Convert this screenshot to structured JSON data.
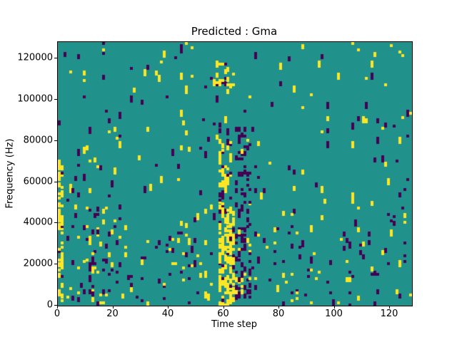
{
  "chart_data": {
    "type": "heatmap",
    "title": "Predicted : Gma",
    "xlabel": "Time step",
    "ylabel": "Frequency (Hz)",
    "x_range": [
      0,
      128
    ],
    "y_range": [
      0,
      128000
    ],
    "x_ticks": [
      0,
      20,
      40,
      60,
      80,
      100,
      120
    ],
    "y_ticks": [
      0,
      20000,
      40000,
      60000,
      80000,
      100000,
      120000
    ],
    "x_tick_labels": [
      "0",
      "20",
      "40",
      "60",
      "80",
      "100",
      "120"
    ],
    "y_tick_labels": [
      "0",
      "20000",
      "40000",
      "60000",
      "80000",
      "100000",
      "120000"
    ],
    "grid": {
      "cols": 128,
      "rows": 128
    },
    "legend": "none",
    "colors": {
      "background": "#21918c",
      "high": "#fde725",
      "low": "#440154",
      "spine": "#000000",
      "figure_background": "#ffffff"
    },
    "value_meaning": {
      "background": "mid class",
      "high": "yellow class",
      "low": "purple class"
    },
    "noise": {
      "seed": 1337,
      "yellow_density": 0.008,
      "purple_density": 0.008,
      "streak_max_rows": 3
    },
    "features": [
      {
        "name": "bottom-half-denser-scatter",
        "cols": [
          0,
          127
        ],
        "freq": [
          0,
          45000
        ],
        "yellow": 0.011,
        "purple": 0.011
      },
      {
        "name": "lower-left-dense-scatter",
        "cols": [
          4,
          22
        ],
        "freq": [
          0,
          48000
        ],
        "yellow": 0.02,
        "purple": 0.025
      },
      {
        "name": "left-edge-yellow-column",
        "cols": [
          0,
          1
        ],
        "freq": [
          16000,
          70000
        ],
        "yellow": 0.42,
        "purple": 0.02
      },
      {
        "name": "left-edge-yellow-column-low",
        "cols": [
          0,
          1
        ],
        "freq": [
          0,
          16000
        ],
        "yellow": 0.12,
        "purple": 0.03
      },
      {
        "name": "center-yellow-band-low",
        "cols": [
          58,
          63
        ],
        "freq": [
          0,
          45000
        ],
        "yellow": 0.33,
        "purple": 0.04
      },
      {
        "name": "center-yellow-band-mid",
        "cols": [
          58,
          62
        ],
        "freq": [
          45000,
          80000
        ],
        "yellow": 0.2,
        "purple": 0.04
      },
      {
        "name": "center-purple-band",
        "cols": [
          64,
          69
        ],
        "freq": [
          3000,
          86000
        ],
        "yellow": 0.02,
        "purple": 0.17
      },
      {
        "name": "upper-center-yellow-cluster",
        "cols": [
          57,
          63
        ],
        "freq": [
          103000,
          118000
        ],
        "yellow": 0.17,
        "purple": 0.05
      }
    ]
  }
}
